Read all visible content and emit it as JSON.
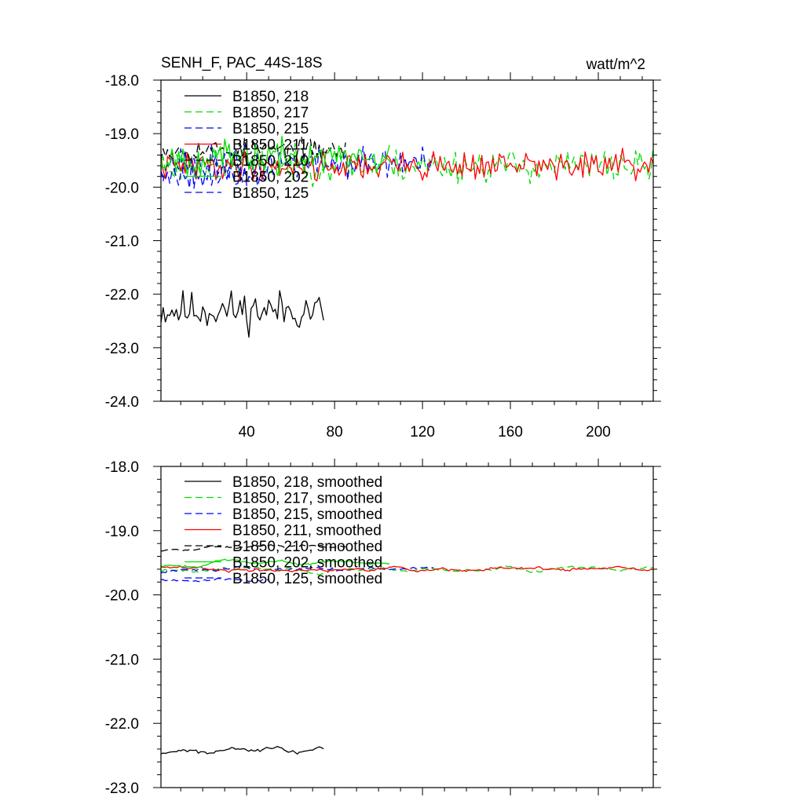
{
  "chart_data": [
    {
      "type": "line",
      "title": "SENH_F, PAC_44S-18S",
      "units": "watt/m^2",
      "xlabel": "",
      "ylabel": "",
      "xlim": [
        1,
        225
      ],
      "ylim": [
        -24.0,
        -18.0
      ],
      "x_ticks": [
        40,
        80,
        120,
        160,
        200
      ],
      "x_tick_labels": [
        "40",
        "80",
        "120",
        "160",
        "200"
      ],
      "y_ticks": [
        -24.0,
        -23.0,
        -22.0,
        -21.0,
        -20.0,
        -19.0,
        -18.0
      ],
      "y_tick_labels": [
        "-24.0",
        "-23.0",
        "-22.0",
        "-21.0",
        "-20.0",
        "-19.0",
        "-18.0"
      ],
      "legend_position": "top-left",
      "series": [
        {
          "name": "B1850, 218",
          "color": "#000000",
          "dash": "solid",
          "length": 75,
          "mean": -22.3,
          "amp": 0.55,
          "seed": 11
        },
        {
          "name": "B1850, 217",
          "color": "#00dd00",
          "dash": "dashed",
          "length": 225,
          "mean": -19.6,
          "amp": 0.45,
          "seed": 23
        },
        {
          "name": "B1850, 215",
          "color": "#0000ff",
          "dash": "dashed",
          "length": 125,
          "mean": -19.55,
          "amp": 0.45,
          "seed": 37
        },
        {
          "name": "B1850, 211",
          "color": "#ff0000",
          "dash": "solid",
          "length": 225,
          "mean": -19.6,
          "amp": 0.4,
          "seed": 41
        },
        {
          "name": "B1850, 210",
          "color": "#000000",
          "dash": "dashed",
          "length": 85,
          "mean": -19.3,
          "amp": 0.3,
          "seed": 53
        },
        {
          "name": "B1850, 202",
          "color": "#00dd00",
          "dash": "solid",
          "length": 105,
          "mean": -19.45,
          "amp": 0.45,
          "seed": 67
        },
        {
          "name": "B1850, 125",
          "color": "#0000ff",
          "dash": "dashed",
          "length": 50,
          "mean": -19.75,
          "amp": 0.45,
          "seed": 79
        }
      ]
    },
    {
      "type": "line",
      "title": "",
      "xlabel": "",
      "ylabel": "",
      "xlim": [
        1,
        225
      ],
      "ylim": [
        -23.0,
        -18.0
      ],
      "x_ticks": [
        40,
        80,
        120,
        160,
        200
      ],
      "x_tick_labels": [],
      "y_ticks": [
        -23.0,
        -22.0,
        -21.0,
        -20.0,
        -19.0,
        -18.0
      ],
      "y_tick_labels": [
        "-23.0",
        "-22.0",
        "-21.0",
        "-20.0",
        "-19.0",
        "-18.0"
      ],
      "legend_position": "top-left",
      "series": [
        {
          "name": "B1850, 218, smoothed",
          "color": "#000000",
          "dash": "solid",
          "length": 75,
          "mean": -22.4,
          "amp": 0.18,
          "seed": 11
        },
        {
          "name": "B1850, 217, smoothed",
          "color": "#00dd00",
          "dash": "dashed",
          "length": 225,
          "mean": -19.6,
          "amp": 0.12,
          "seed": 23
        },
        {
          "name": "B1850, 215, smoothed",
          "color": "#0000ff",
          "dash": "dashed",
          "length": 125,
          "mean": -19.6,
          "amp": 0.12,
          "seed": 37
        },
        {
          "name": "B1850, 211, smoothed",
          "color": "#ff0000",
          "dash": "solid",
          "length": 225,
          "mean": -19.6,
          "amp": 0.12,
          "seed": 41
        },
        {
          "name": "B1850, 210, smoothed",
          "color": "#000000",
          "dash": "dashed",
          "length": 85,
          "mean": -19.25,
          "amp": 0.1,
          "seed": 53
        },
        {
          "name": "B1850, 202, smoothed",
          "color": "#00dd00",
          "dash": "solid",
          "length": 105,
          "mean": -19.5,
          "amp": 0.12,
          "seed": 67
        },
        {
          "name": "B1850, 125, smoothed",
          "color": "#0000ff",
          "dash": "dashed",
          "length": 50,
          "mean": -19.75,
          "amp": 0.1,
          "seed": 79
        }
      ]
    }
  ]
}
